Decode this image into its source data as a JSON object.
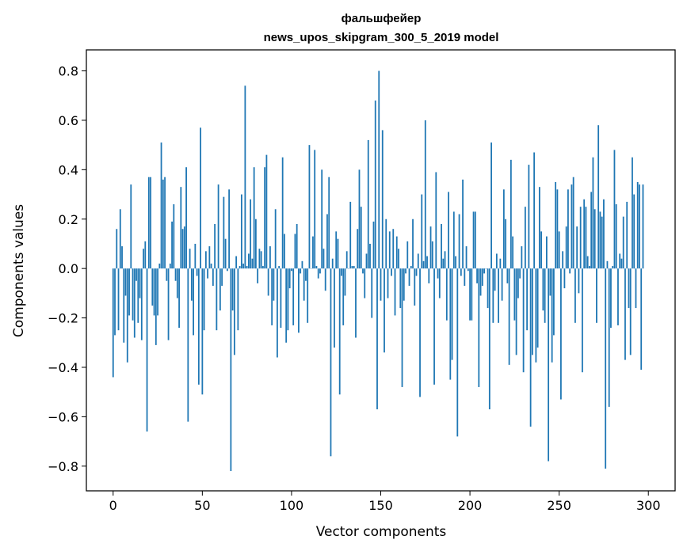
{
  "chart_data": {
    "type": "bar",
    "title": "фальшфейер",
    "subtitle": "news_upos_skipgram_300_5_2019 model",
    "xlabel": "Vector components",
    "ylabel": "Components values",
    "xlim": [
      -15,
      315
    ],
    "ylim": [
      -0.9,
      0.885
    ],
    "xticks": [
      0,
      50,
      100,
      150,
      200,
      250,
      300
    ],
    "xtick_labels": [
      "0",
      "50",
      "100",
      "150",
      "200",
      "250",
      "300"
    ],
    "yticks": [
      0.8,
      0.6,
      0.4,
      0.2,
      0.0,
      -0.2,
      -0.4,
      -0.6,
      -0.8
    ],
    "ytick_labels": [
      "0.8",
      "0.6",
      "0.4",
      "0.2",
      "0.0",
      "−0.2",
      "−0.4",
      "−0.6",
      "−0.8"
    ],
    "bar_color": "#1f77b4",
    "grid": false,
    "legend": "none",
    "x_start": 0,
    "values": [
      -0.44,
      -0.27,
      0.16,
      -0.25,
      0.24,
      0.09,
      -0.3,
      -0.11,
      -0.38,
      -0.19,
      0.34,
      -0.21,
      -0.28,
      -0.05,
      -0.22,
      -0.12,
      -0.29,
      0.08,
      0.11,
      -0.66,
      0.37,
      0.37,
      -0.15,
      -0.19,
      -0.31,
      -0.19,
      0.02,
      0.51,
      0.36,
      0.37,
      -0.05,
      -0.29,
      0.02,
      0.19,
      0.26,
      -0.05,
      -0.12,
      -0.24,
      0.33,
      0.16,
      0.17,
      0.41,
      -0.62,
      0.08,
      -0.13,
      -0.27,
      0.1,
      -0.03,
      -0.47,
      0.57,
      -0.51,
      -0.25,
      0.07,
      -0.04,
      0.09,
      0.02,
      -0.07,
      0.18,
      -0.25,
      0.34,
      -0.17,
      -0.07,
      0.29,
      0.12,
      -0.01,
      0.32,
      -0.82,
      -0.17,
      -0.35,
      0.05,
      -0.25,
      0.01,
      0.3,
      0.02,
      0.74,
      0.01,
      0.06,
      0.28,
      0.04,
      0.41,
      0.2,
      -0.06,
      0.08,
      0.07,
      0.01,
      0.41,
      0.46,
      -0.11,
      0.09,
      -0.23,
      -0.13,
      0.24,
      -0.36,
      0.01,
      -0.24,
      0.45,
      0.14,
      -0.3,
      -0.25,
      -0.08,
      -0.01,
      -0.23,
      0.14,
      0.18,
      -0.26,
      -0.02,
      0.03,
      -0.13,
      -0.05,
      -0.22,
      0.5,
      0.0,
      0.13,
      0.48,
      0.01,
      -0.04,
      -0.02,
      0.4,
      0.08,
      -0.09,
      0.22,
      0.37,
      -0.76,
      0.04,
      -0.32,
      0.15,
      0.12,
      -0.51,
      -0.03,
      -0.23,
      -0.11,
      0.07,
      0.0,
      0.27,
      0.01,
      0.01,
      -0.28,
      0.16,
      0.4,
      0.25,
      -0.02,
      -0.12,
      0.06,
      0.52,
      0.1,
      -0.2,
      0.19,
      0.68,
      -0.57,
      0.8,
      -0.13,
      0.56,
      -0.34,
      0.2,
      -0.12,
      0.15,
      -0.03,
      0.16,
      -0.19,
      0.13,
      0.08,
      -0.16,
      -0.48,
      -0.13,
      -0.02,
      0.11,
      -0.07,
      0.01,
      0.2,
      -0.15,
      -0.03,
      0.06,
      -0.52,
      0.3,
      0.03,
      0.6,
      0.05,
      -0.06,
      0.17,
      0.11,
      -0.47,
      0.39,
      -0.04,
      -0.12,
      0.18,
      0.04,
      0.07,
      -0.21,
      0.31,
      -0.45,
      -0.37,
      0.23,
      0.05,
      -0.68,
      0.22,
      -0.03,
      0.36,
      -0.07,
      0.09,
      -0.01,
      -0.21,
      -0.21,
      0.23,
      0.23,
      -0.06,
      -0.48,
      -0.11,
      -0.07,
      -0.02,
      0.0,
      -0.16,
      -0.57,
      0.51,
      -0.22,
      -0.09,
      0.06,
      -0.22,
      0.04,
      -0.13,
      0.32,
      0.2,
      -0.06,
      -0.39,
      0.44,
      0.13,
      -0.21,
      -0.35,
      -0.12,
      -0.04,
      0.09,
      -0.42,
      0.25,
      -0.25,
      0.42,
      -0.64,
      -0.35,
      0.47,
      -0.38,
      -0.32,
      0.33,
      0.15,
      -0.17,
      -0.22,
      0.13,
      -0.78,
      -0.11,
      -0.38,
      -0.27,
      0.35,
      0.32,
      0.15,
      -0.53,
      0.07,
      -0.08,
      0.17,
      0.32,
      -0.02,
      0.34,
      0.37,
      -0.22,
      0.17,
      -0.1,
      0.25,
      -0.42,
      0.28,
      0.25,
      0.05,
      0.01,
      0.31,
      0.45,
      0.24,
      -0.22,
      0.58,
      0.23,
      0.21,
      0.28,
      -0.81,
      0.03,
      -0.56,
      -0.24,
      0.01,
      0.48,
      0.26,
      -0.23,
      0.06,
      0.04,
      0.21,
      -0.37,
      0.27,
      -0.16,
      -0.35,
      0.45,
      0.3,
      -0.16,
      0.35,
      0.34,
      -0.41,
      0.34
    ]
  }
}
